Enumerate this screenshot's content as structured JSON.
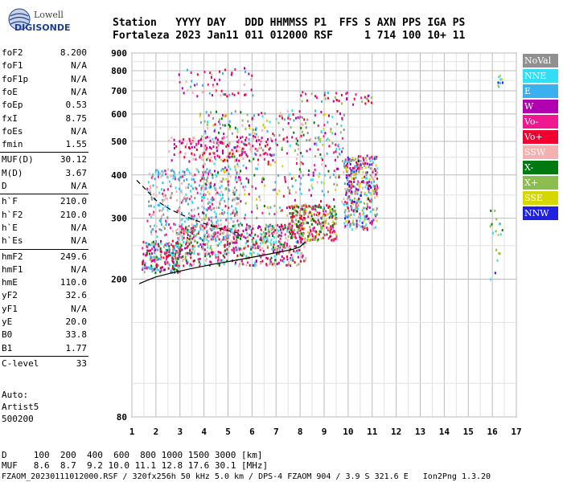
{
  "logo": {
    "line1": "Lowell",
    "line2": "DIGISONDE"
  },
  "header": {
    "line1": "Station   YYYY DAY   DDD HHMMSS P1  FFS S AXN PPS IGA PS",
    "line2": "Fortaleza 2023 Jan11 011 012000 RSF     1 714 100 10+ 11"
  },
  "params": [
    {
      "k": "foF2",
      "v": "8.200"
    },
    {
      "k": "foF1",
      "v": "N/A"
    },
    {
      "k": "foF1p",
      "v": "N/A"
    },
    {
      "k": "foE",
      "v": "N/A"
    },
    {
      "k": "foEp",
      "v": "0.53"
    },
    {
      "k": "fxI",
      "v": "8.75"
    },
    {
      "k": "foEs",
      "v": "N/A"
    },
    {
      "k": "fmin",
      "v": "1.55"
    },
    {
      "k": "MUF(D)",
      "v": "30.12"
    },
    {
      "k": "M(D)",
      "v": "3.67"
    },
    {
      "k": "D",
      "v": "N/A"
    },
    {
      "k": "h`F",
      "v": "210.0"
    },
    {
      "k": "h`F2",
      "v": "210.0"
    },
    {
      "k": "h`E",
      "v": "N/A"
    },
    {
      "k": "h`Es",
      "v": "N/A"
    },
    {
      "k": "hmF2",
      "v": "249.6"
    },
    {
      "k": "hmF1",
      "v": "N/A"
    },
    {
      "k": "hmE",
      "v": "110.0"
    },
    {
      "k": "yF2",
      "v": "32.6"
    },
    {
      "k": "yF1",
      "v": "N/A"
    },
    {
      "k": "yE",
      "v": "20.0"
    },
    {
      "k": "B0",
      "v": "33.8"
    },
    {
      "k": "B1",
      "v": "1.77"
    },
    {
      "k": "C-level",
      "v": "33"
    }
  ],
  "auto": {
    "l1": "Auto:",
    "l2": "Artist5",
    "l3": "500200"
  },
  "footer": {
    "line1": "D     100  200  400  600  800 1000 1500 3000 [km]",
    "line2": "MUF   8.6  8.7  9.2 10.0 11.1 12.8 17.6 30.1 [MHz]",
    "line3": "FZAOM_20230111012000.RSF / 320fx256h 50 kHz 5.0 km / DPS-4 FZAOM 904 / 3.9 S 321.6 E   Ion2Png 1.3.20"
  },
  "legend": [
    {
      "label": "NoVal",
      "color": "#909090"
    },
    {
      "label": "NNE",
      "color": "#33ddf5"
    },
    {
      "label": "E",
      "color": "#3ab0f0"
    },
    {
      "label": "W",
      "color": "#b000b0"
    },
    {
      "label": "Vo-",
      "color": "#f01890"
    },
    {
      "label": "Vo+",
      "color": "#f00030"
    },
    {
      "label": "SSW",
      "color": "#f5b0b0"
    },
    {
      "label": "X-",
      "color": "#007a10"
    },
    {
      "label": "X+",
      "color": "#8cbd50"
    },
    {
      "label": "SSE",
      "color": "#d6d600"
    },
    {
      "label": "NNW",
      "color": "#2020e0"
    }
  ],
  "chart_data": {
    "type": "scatter",
    "title": "",
    "xlabel": "",
    "ylabel": "",
    "xlim": [
      1,
      17
    ],
    "ylim": [
      80,
      900
    ],
    "y_scale": "log",
    "grid": true,
    "x_ticks": [
      1,
      2,
      3,
      4,
      5,
      6,
      7,
      8,
      9,
      10,
      11,
      12,
      13,
      14,
      15,
      16,
      17
    ],
    "y_ticks": [
      80,
      200,
      300,
      400,
      500,
      600,
      700,
      800,
      900
    ],
    "traces": [
      {
        "name": "profile",
        "style": "solid",
        "x": [
          1.3,
          1.6,
          2.0,
          2.6,
          3.4,
          4.4,
          5.5,
          6.4,
          7.2,
          7.7,
          8.0,
          8.1,
          8.2
        ],
        "y": [
          194,
          198,
          203,
          208,
          214,
          221,
          228,
          234,
          240,
          244,
          248,
          252,
          256
        ]
      },
      {
        "name": "upper",
        "style": "dashed",
        "x": [
          1.2,
          1.6,
          2.0,
          2.6,
          3.3,
          4.0,
          4.8,
          5.6
        ],
        "y": [
          386,
          362,
          338,
          318,
          302,
          290,
          278,
          270
        ]
      }
    ],
    "echo_clusters": [
      {
        "x": [
          1.4,
          3.0
        ],
        "y": [
          210,
          260
        ],
        "n": 220,
        "colors": [
          1,
          2,
          4,
          5,
          7,
          8,
          3
        ]
      },
      {
        "x": [
          2.8,
          8.2
        ],
        "y": [
          220,
          290
        ],
        "n": 650,
        "colors": [
          4,
          5,
          7,
          8,
          3,
          6,
          1
        ]
      },
      {
        "x": [
          1.6,
          5.5
        ],
        "y": [
          260,
          420
        ],
        "n": 420,
        "colors": [
          1,
          2,
          0,
          4,
          6
        ]
      },
      {
        "x": [
          3.8,
          9.8
        ],
        "y": [
          300,
          620
        ],
        "n": 520,
        "colors": [
          1,
          2,
          4,
          5,
          7,
          8,
          9,
          3,
          0,
          6
        ]
      },
      {
        "x": [
          7.5,
          9.5
        ],
        "y": [
          260,
          330
        ],
        "n": 260,
        "colors": [
          5,
          4,
          9,
          7,
          8
        ]
      },
      {
        "x": [
          9.8,
          11.2
        ],
        "y": [
          280,
          460
        ],
        "n": 380,
        "colors": [
          5,
          10,
          4,
          0,
          1,
          2,
          3,
          6,
          9,
          8
        ]
      },
      {
        "x": [
          2.5,
          6.8
        ],
        "y": [
          440,
          520
        ],
        "n": 150,
        "colors": [
          4,
          5,
          6,
          3
        ]
      },
      {
        "x": [
          2.8,
          6.0
        ],
        "y": [
          680,
          820
        ],
        "n": 60,
        "colors": [
          6,
          4,
          5,
          3,
          2
        ]
      },
      {
        "x": [
          8.0,
          11.0
        ],
        "y": [
          640,
          700
        ],
        "n": 40,
        "colors": [
          3,
          4,
          5,
          8,
          2
        ]
      },
      {
        "x": [
          15.8,
          16.4
        ],
        "y": [
          200,
          320
        ],
        "n": 18,
        "colors": [
          7,
          8,
          9,
          10,
          1
        ]
      },
      {
        "x": [
          16.2,
          16.4
        ],
        "y": [
          720,
          780
        ],
        "n": 10,
        "colors": [
          10,
          2,
          9,
          1
        ]
      }
    ]
  }
}
